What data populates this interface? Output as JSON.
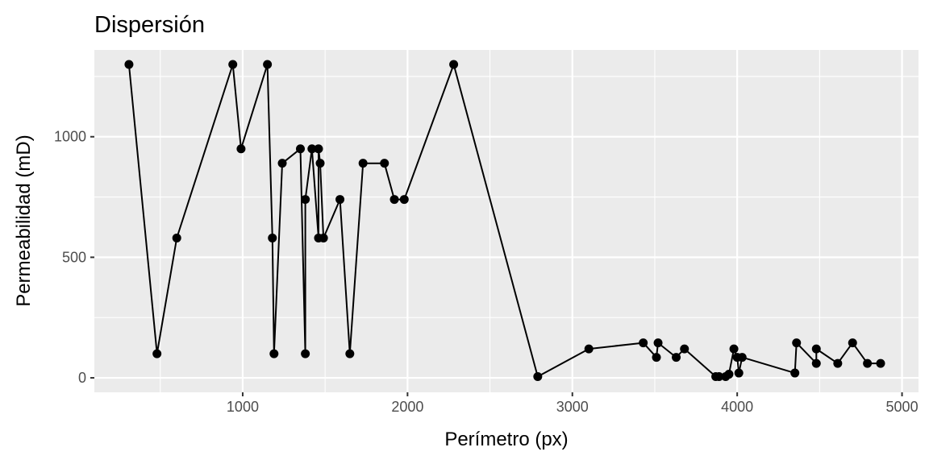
{
  "chart_data": {
    "type": "line",
    "title": "Dispersión",
    "xlabel": "Perímetro (px)",
    "ylabel": "Permeabilidad (mD)",
    "xlim": [
      100,
      5100
    ],
    "ylim": [
      -60,
      1360
    ],
    "x_ticks": [
      1000,
      2000,
      3000,
      4000,
      5000
    ],
    "y_ticks": [
      0,
      500,
      1000
    ],
    "x_tick_labels": [
      "1000",
      "2000",
      "3000",
      "4000",
      "5000"
    ],
    "y_tick_labels": [
      "0",
      "500",
      "1000"
    ],
    "grid": true,
    "markers": true,
    "colors": {
      "panel": "#ebebeb",
      "grid": "#ffffff",
      "line": "#000000"
    },
    "series": [
      {
        "x": [
          310,
          480,
          600,
          940,
          990,
          1150,
          1180,
          1190,
          1240,
          1350,
          1380,
          1380,
          1420,
          1460,
          1460,
          1470,
          1490,
          1590,
          1650,
          1730,
          1860,
          1920,
          1980,
          2280,
          2790,
          3100,
          3430,
          3510,
          3520,
          3630,
          3680,
          3870,
          3890,
          3930,
          3950,
          3980,
          4000,
          4010,
          4030,
          4350,
          4360,
          4480,
          4480,
          4610,
          4700,
          4790,
          4870
        ],
        "y": [
          1300,
          100,
          580,
          1300,
          950,
          1300,
          580,
          100,
          890,
          950,
          100,
          740,
          950,
          580,
          950,
          890,
          580,
          740,
          100,
          890,
          890,
          740,
          740,
          1300,
          5,
          120,
          145,
          85,
          145,
          85,
          120,
          5,
          5,
          5,
          15,
          120,
          85,
          20,
          85,
          20,
          145,
          60,
          120,
          60,
          145,
          60,
          60
        ]
      }
    ]
  }
}
